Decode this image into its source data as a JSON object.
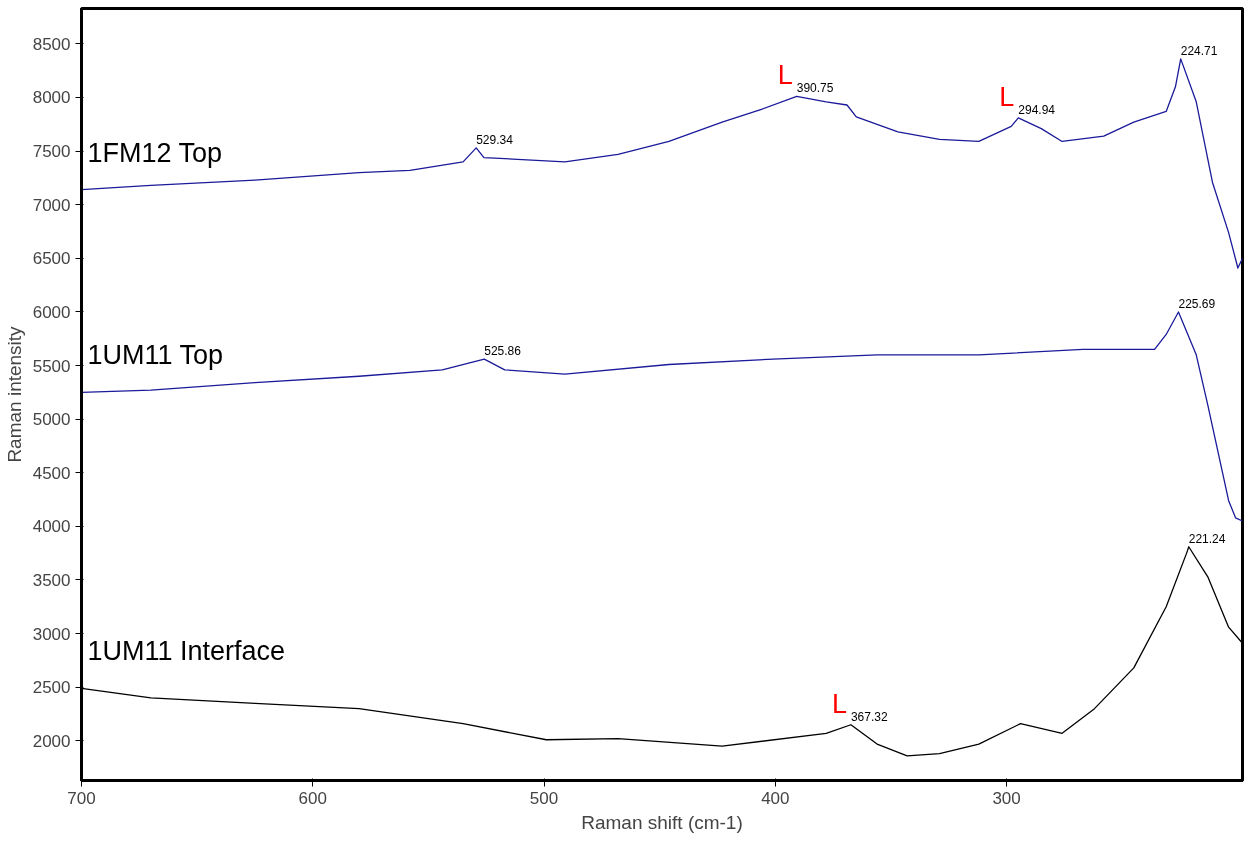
{
  "chart_data": {
    "type": "line",
    "xlabel": "Raman shift (cm-1)",
    "ylabel": "Raman intensity",
    "xlim": [
      700,
      198
    ],
    "ylim": [
      1630,
      8830
    ],
    "xticks": [
      700,
      600,
      500,
      400,
      300
    ],
    "yticks": [
      2000,
      2500,
      3000,
      3500,
      4000,
      4500,
      5000,
      5500,
      6000,
      6500,
      7000,
      7500,
      8000,
      8500
    ],
    "grid": false,
    "legend": false,
    "marker": "none",
    "line_style": "solid",
    "series": [
      {
        "name": "1FM12 Top",
        "color": "#1a1a9a",
        "x": [
          700,
          670,
          625,
          580,
          558,
          535,
          529.34,
          526,
          491,
          468,
          446,
          423,
          406,
          390.75,
          378,
          369,
          365,
          347,
          329,
          312,
          298,
          294.94,
          285,
          276,
          258,
          245,
          231,
          227,
          224.71,
          218,
          211,
          204,
          200,
          198
        ],
        "values": [
          7140,
          7180,
          7230,
          7300,
          7320,
          7400,
          7530,
          7440,
          7400,
          7470,
          7590,
          7770,
          7890,
          8010,
          7960,
          7930,
          7820,
          7680,
          7610,
          7590,
          7730,
          7810,
          7710,
          7590,
          7640,
          7770,
          7870,
          8100,
          8360,
          7960,
          7210,
          6740,
          6410,
          6500
        ]
      },
      {
        "name": "1UM11 Top",
        "color": "#1a1a9a",
        "x": [
          700,
          670,
          625,
          580,
          544,
          525.86,
          517,
          491,
          446,
          401,
          356,
          312,
          267,
          236,
          231,
          225.69,
          218,
          213,
          204,
          201,
          198
        ],
        "values": [
          5250,
          5270,
          5340,
          5400,
          5460,
          5560,
          5460,
          5420,
          5510,
          5560,
          5600,
          5600,
          5650,
          5650,
          5790,
          6000,
          5600,
          5130,
          4240,
          4080,
          4050
        ]
      },
      {
        "name": "1UM11 Interface",
        "color": "#000000",
        "x": [
          700,
          670,
          625,
          580,
          535,
          499,
          468,
          423,
          378,
          367.32,
          356,
          343,
          329,
          312,
          294,
          276,
          262,
          245,
          231,
          222,
          221.24,
          213,
          204,
          198
        ],
        "values": [
          2490,
          2400,
          2350,
          2300,
          2160,
          2010,
          2020,
          1950,
          2070,
          2150,
          1970,
          1860,
          1880,
          1970,
          2160,
          2070,
          2300,
          2680,
          3250,
          3760,
          3810,
          3530,
          3060,
          2910
        ]
      }
    ],
    "annotations": [
      {
        "text": "529.34",
        "x": 529.34,
        "y": 7530
      },
      {
        "text": "390.75",
        "x": 390.75,
        "y": 8010
      },
      {
        "text": "294.94",
        "x": 294.94,
        "y": 7810
      },
      {
        "text": "224.71",
        "x": 224.71,
        "y": 8360
      },
      {
        "text": "525.86",
        "x": 525.86,
        "y": 5560
      },
      {
        "text": "225.69",
        "x": 225.69,
        "y": 6000
      },
      {
        "text": "367.32",
        "x": 367.32,
        "y": 2150
      },
      {
        "text": "221.24",
        "x": 221.24,
        "y": 3810
      },
      {
        "text": "L",
        "x": 390.75,
        "y": 8010
      },
      {
        "text": "L",
        "x": 294.94,
        "y": 7810
      },
      {
        "text": "L",
        "x": 367.32,
        "y": 2150
      }
    ]
  }
}
